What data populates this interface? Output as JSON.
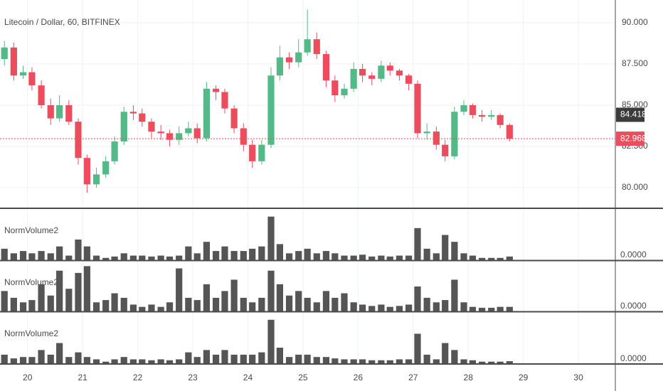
{
  "chart_data": [
    {
      "type": "candlestick",
      "title": "Litecoin / Dollar, 60, BITFINEX",
      "x": [
        19.58,
        19.75,
        19.92,
        20.08,
        20.25,
        20.42,
        20.58,
        20.75,
        20.92,
        21.08,
        21.25,
        21.42,
        21.58,
        21.75,
        21.92,
        22.08,
        22.25,
        22.42,
        22.58,
        22.75,
        22.92,
        23.08,
        23.25,
        23.42,
        23.58,
        23.75,
        23.92,
        24.08,
        24.25,
        24.42,
        24.58,
        24.75,
        24.92,
        25.08,
        25.25,
        25.42,
        25.58,
        25.75,
        25.92,
        26.08,
        26.25,
        26.42,
        26.58,
        26.75,
        26.92,
        27.08,
        27.25,
        27.42,
        27.58,
        27.75,
        27.92,
        28.08,
        28.25,
        28.42,
        28.58,
        28.75
      ],
      "open": [
        87.8,
        88.5,
        86.8,
        87.0,
        86.2,
        85.0,
        84.2,
        85.0,
        84.0,
        81.8,
        80.2,
        80.8,
        81.6,
        82.8,
        84.6,
        84.5,
        84.0,
        83.4,
        83.3,
        82.9,
        83.3,
        83.6,
        83.0,
        86.0,
        85.8,
        84.8,
        83.6,
        82.6,
        81.6,
        82.6,
        86.8,
        87.9,
        87.6,
        88.2,
        89.0,
        88.1,
        86.5,
        85.6,
        86.0,
        87.2,
        86.8,
        86.6,
        87.4,
        87.1,
        86.8,
        86.3,
        83.3,
        83.4,
        82.6,
        81.9,
        84.6,
        85.0,
        84.4,
        84.3,
        84.4,
        83.8
      ],
      "high": [
        88.9,
        88.8,
        87.4,
        87.3,
        86.5,
        85.4,
        85.6,
        85.3,
        84.2,
        82.0,
        81.2,
        81.9,
        83.1,
        84.9,
        85.0,
        84.8,
        84.2,
        83.8,
        83.5,
        83.7,
        84.0,
        83.9,
        86.4,
        86.2,
        86.0,
        85.0,
        83.9,
        82.9,
        82.9,
        87.3,
        88.6,
        88.2,
        89.0,
        90.8,
        89.4,
        88.3,
        86.8,
        86.3,
        87.6,
        87.5,
        87.0,
        87.7,
        87.6,
        87.2,
        86.9,
        86.5,
        83.9,
        83.7,
        82.9,
        84.9,
        85.3,
        85.1,
        84.7,
        84.7,
        84.5,
        83.9
      ],
      "low": [
        87.4,
        86.5,
        86.6,
        85.9,
        84.8,
        83.8,
        84.0,
        83.8,
        81.4,
        79.7,
        80.0,
        80.6,
        81.4,
        82.6,
        84.1,
        83.7,
        83.0,
        82.9,
        82.5,
        82.6,
        83.1,
        82.7,
        82.8,
        85.3,
        84.5,
        83.3,
        82.2,
        81.2,
        81.4,
        82.4,
        86.5,
        87.2,
        87.3,
        88.0,
        87.8,
        86.1,
        85.2,
        85.4,
        85.8,
        86.4,
        86.2,
        86.4,
        86.8,
        86.5,
        85.9,
        83.0,
        82.9,
        82.3,
        81.6,
        81.7,
        84.4,
        84.2,
        84.0,
        84.1,
        83.6,
        82.8
      ],
      "close": [
        88.5,
        86.8,
        87.0,
        86.2,
        85.0,
        84.2,
        85.0,
        84.0,
        81.8,
        80.2,
        80.8,
        81.6,
        82.8,
        84.6,
        84.5,
        84.0,
        83.4,
        83.3,
        82.9,
        83.3,
        83.6,
        83.0,
        86.0,
        85.8,
        84.8,
        83.6,
        82.6,
        81.6,
        82.6,
        86.8,
        87.9,
        87.6,
        88.2,
        89.0,
        88.1,
        86.5,
        85.6,
        86.0,
        87.2,
        86.8,
        86.6,
        87.4,
        87.1,
        86.8,
        86.3,
        83.3,
        83.4,
        82.6,
        81.9,
        84.6,
        85.0,
        84.4,
        84.3,
        84.4,
        83.8,
        82.968
      ],
      "up_color": "#53b987",
      "down_color": "#eb4d5c",
      "xlim": [
        19.5,
        30.67
      ],
      "xticks": [
        20,
        21,
        22,
        23,
        24,
        25,
        26,
        27,
        28,
        29,
        30
      ],
      "ylim": [
        78.79,
        91.38
      ],
      "yticks": [
        {
          "value": 80,
          "label": "80.000"
        },
        {
          "value": 82.5,
          "label": "82.500"
        },
        {
          "value": 85,
          "label": "85.000"
        },
        {
          "value": 87.5,
          "label": "87.500"
        },
        {
          "value": 90,
          "label": "90.000"
        }
      ],
      "price_labels": [
        {
          "value": 84.418,
          "color": "#3b3b3b",
          "line": false
        },
        {
          "value": 82.968,
          "color": "#eb4d5c",
          "line": true
        }
      ],
      "grid": true
    },
    {
      "type": "bar",
      "title": "NormVolume2",
      "color": "#555555",
      "ylim": [
        0,
        1.1
      ],
      "yticks": [
        {
          "value": 0,
          "label": "0.0000"
        }
      ],
      "values": [
        0.25,
        0.15,
        0.2,
        0.15,
        0.2,
        0.15,
        0.3,
        0.1,
        0.45,
        0.3,
        0.1,
        0.05,
        0.08,
        0.15,
        0.1,
        0.1,
        0.08,
        0.1,
        0.08,
        0.1,
        0.3,
        0.15,
        0.4,
        0.2,
        0.3,
        0.2,
        0.2,
        0.25,
        0.3,
        0.95,
        0.35,
        0.15,
        0.2,
        0.25,
        0.15,
        0.2,
        0.15,
        0.1,
        0.1,
        0.12,
        0.08,
        0.1,
        0.08,
        0.1,
        0.1,
        0.7,
        0.25,
        0.15,
        0.55,
        0.4,
        0.15,
        0.1,
        0.05,
        0.05,
        0.05,
        0.08
      ]
    },
    {
      "type": "bar",
      "title": "NormVolume2",
      "color": "#555555",
      "ylim": [
        0,
        1.1
      ],
      "yticks": [
        {
          "value": 0,
          "label": "0.0000"
        }
      ],
      "values": [
        0.45,
        0.3,
        0.2,
        0.25,
        0.6,
        0.35,
        0.9,
        0.5,
        0.85,
        1.0,
        0.2,
        0.25,
        0.4,
        0.3,
        0.15,
        0.1,
        0.15,
        0.1,
        0.2,
        0.95,
        0.3,
        0.25,
        0.6,
        0.3,
        0.45,
        0.7,
        0.3,
        0.2,
        0.3,
        0.9,
        0.6,
        0.35,
        0.45,
        0.3,
        0.2,
        0.45,
        0.3,
        0.4,
        0.2,
        0.15,
        0.12,
        0.15,
        0.1,
        0.12,
        0.15,
        0.55,
        0.3,
        0.2,
        0.25,
        0.7,
        0.2,
        0.1,
        0.08,
        0.08,
        0.1,
        0.1
      ]
    },
    {
      "type": "bar",
      "title": "NormVolume2",
      "color": "#555555",
      "ylim": [
        0,
        1.1
      ],
      "yticks": [
        {
          "value": 0,
          "label": "0.0000"
        }
      ],
      "values": [
        0.2,
        0.12,
        0.15,
        0.15,
        0.3,
        0.2,
        0.45,
        0.15,
        0.25,
        0.15,
        0.1,
        0.05,
        0.1,
        0.15,
        0.1,
        0.1,
        0.08,
        0.1,
        0.08,
        0.1,
        0.25,
        0.15,
        0.3,
        0.2,
        0.3,
        0.2,
        0.2,
        0.2,
        0.25,
        0.95,
        0.35,
        0.15,
        0.2,
        0.2,
        0.15,
        0.15,
        0.12,
        0.1,
        0.1,
        0.1,
        0.08,
        0.08,
        0.08,
        0.1,
        0.1,
        0.65,
        0.2,
        0.1,
        0.45,
        0.3,
        0.1,
        0.08,
        0.05,
        0.05,
        0.05,
        0.06
      ]
    }
  ]
}
